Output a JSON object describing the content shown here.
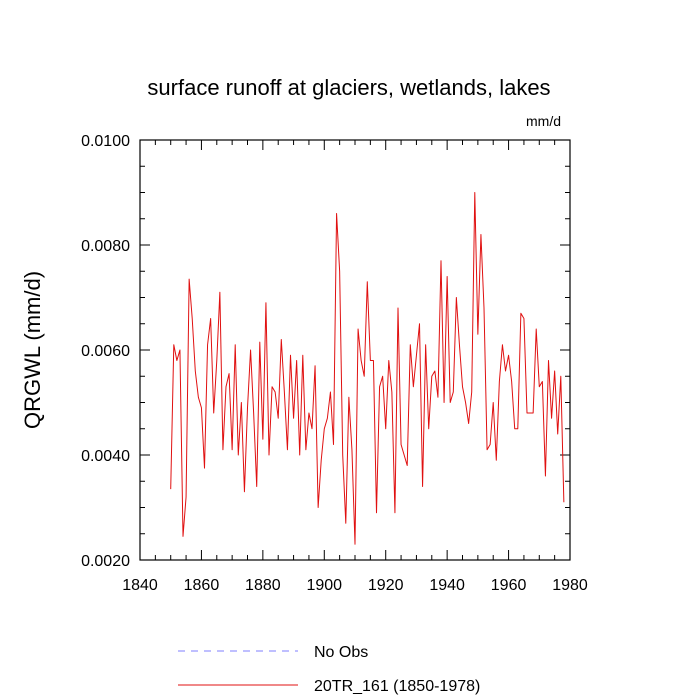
{
  "chart_data": {
    "type": "line",
    "title": "surface runoff at glaciers, wetlands, lakes",
    "units_label": "mm/d",
    "xlabel": "",
    "ylabel": "QRGWL  (mm/d)",
    "xlim": [
      1840,
      1980
    ],
    "ylim": [
      0.002,
      0.01
    ],
    "xticks": [
      1840,
      1860,
      1880,
      1900,
      1920,
      1940,
      1960,
      1980
    ],
    "xtick_labels": [
      "1840",
      "1860",
      "1880",
      "1900",
      "1920",
      "1940",
      "1960",
      "1980"
    ],
    "yticks": [
      0.002,
      0.004,
      0.006,
      0.008,
      0.01
    ],
    "ytick_labels": [
      "0.0020",
      "0.0040",
      "0.0060",
      "0.0080",
      "0.0100"
    ],
    "grid": false,
    "legend_position": "bottom",
    "series": [
      {
        "name": "No Obs",
        "color": "#7f7fff",
        "style": "dashed",
        "x": [],
        "y": []
      },
      {
        "name": "20TR_161 (1850-1978)",
        "color": "#e01010",
        "style": "solid",
        "x": [
          1850,
          1851,
          1852,
          1853,
          1854,
          1855,
          1856,
          1857,
          1858,
          1859,
          1860,
          1861,
          1862,
          1863,
          1864,
          1865,
          1866,
          1867,
          1868,
          1869,
          1870,
          1871,
          1872,
          1873,
          1874,
          1875,
          1876,
          1877,
          1878,
          1879,
          1880,
          1881,
          1882,
          1883,
          1884,
          1885,
          1886,
          1887,
          1888,
          1889,
          1890,
          1891,
          1892,
          1893,
          1894,
          1895,
          1896,
          1897,
          1898,
          1899,
          1900,
          1901,
          1902,
          1903,
          1904,
          1905,
          1906,
          1907,
          1908,
          1909,
          1910,
          1911,
          1912,
          1913,
          1914,
          1915,
          1916,
          1917,
          1918,
          1919,
          1920,
          1921,
          1922,
          1923,
          1924,
          1925,
          1926,
          1927,
          1928,
          1929,
          1930,
          1931,
          1932,
          1933,
          1934,
          1935,
          1936,
          1937,
          1938,
          1939,
          1940,
          1941,
          1942,
          1943,
          1944,
          1945,
          1946,
          1947,
          1948,
          1949,
          1950,
          1951,
          1952,
          1953,
          1954,
          1955,
          1956,
          1957,
          1958,
          1959,
          1960,
          1961,
          1962,
          1963,
          1964,
          1965,
          1966,
          1967,
          1968,
          1969,
          1970,
          1971,
          1972,
          1973,
          1974,
          1975,
          1976,
          1977,
          1978
        ],
        "y": [
          0.00335,
          0.0061,
          0.0058,
          0.006,
          0.00245,
          0.0032,
          0.00735,
          0.0066,
          0.0056,
          0.0051,
          0.0049,
          0.00375,
          0.0061,
          0.0066,
          0.0048,
          0.0058,
          0.0071,
          0.0041,
          0.0053,
          0.00555,
          0.0041,
          0.0061,
          0.004,
          0.005,
          0.0033,
          0.0049,
          0.006,
          0.0048,
          0.0034,
          0.00615,
          0.0043,
          0.0069,
          0.004,
          0.0053,
          0.0052,
          0.0047,
          0.0062,
          0.0052,
          0.0041,
          0.0059,
          0.0047,
          0.0058,
          0.004,
          0.0059,
          0.0041,
          0.0048,
          0.0045,
          0.0057,
          0.003,
          0.0039,
          0.0045,
          0.0047,
          0.0052,
          0.0042,
          0.0086,
          0.0075,
          0.004,
          0.0027,
          0.0051,
          0.0041,
          0.0023,
          0.0064,
          0.0058,
          0.0055,
          0.0073,
          0.0058,
          0.0058,
          0.0029,
          0.0053,
          0.0055,
          0.0045,
          0.0058,
          0.0052,
          0.0029,
          0.0068,
          0.0042,
          0.004,
          0.0038,
          0.0061,
          0.0053,
          0.0059,
          0.0065,
          0.0034,
          0.0061,
          0.0045,
          0.0055,
          0.0056,
          0.0051,
          0.0077,
          0.005,
          0.0074,
          0.005,
          0.0052,
          0.007,
          0.0061,
          0.0053,
          0.005,
          0.0046,
          0.0052,
          0.009,
          0.0063,
          0.0082,
          0.0068,
          0.0041,
          0.0042,
          0.005,
          0.0039,
          0.0054,
          0.0061,
          0.0056,
          0.0059,
          0.0054,
          0.0045,
          0.0045,
          0.0067,
          0.0066,
          0.0048,
          0.0048,
          0.0048,
          0.0064,
          0.0053,
          0.0054,
          0.0036,
          0.0058,
          0.0047,
          0.0056,
          0.0044,
          0.0055,
          0.0031
        ]
      }
    ]
  }
}
